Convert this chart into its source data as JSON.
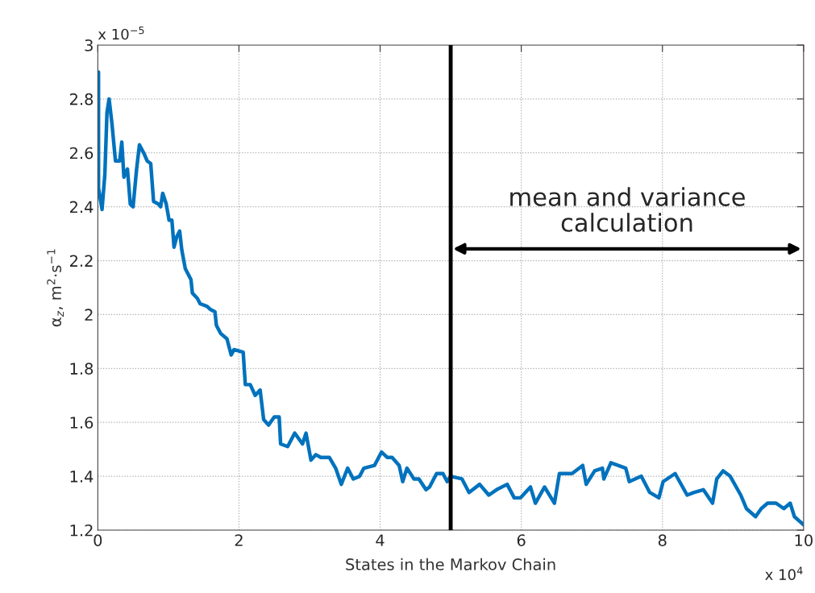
{
  "chart_data": {
    "type": "line",
    "xlabel": "States in the Markov Chain",
    "ylabel": "α$_{z}$, m$^{2}$·s$^{−1}$",
    "xlim": [
      0,
      10
    ],
    "xticks": [
      0,
      2,
      4,
      6,
      8,
      10
    ],
    "ylim": [
      1.2,
      3
    ],
    "yticks": [
      1.2,
      1.4,
      1.6,
      1.8,
      2,
      2.2,
      2.4,
      2.6,
      2.8,
      3
    ],
    "grid": true,
    "series": [
      {
        "color": "#0072bd",
        "x": [
          0.01,
          0.01,
          0.06,
          0.1,
          0.13,
          0.16,
          0.2,
          0.25,
          0.31,
          0.34,
          0.37,
          0.42,
          0.46,
          0.5,
          0.55,
          0.59,
          0.65,
          0.7,
          0.75,
          0.79,
          0.86,
          0.89,
          0.92,
          0.97,
          1.01,
          1.05,
          1.08,
          1.12,
          1.16,
          1.19,
          1.24,
          1.32,
          1.34,
          1.41,
          1.45,
          1.55,
          1.59,
          1.66,
          1.68,
          1.74,
          1.83,
          1.89,
          1.93,
          2.06,
          2.09,
          2.16,
          2.23,
          2.3,
          2.35,
          2.42,
          2.5,
          2.57,
          2.59,
          2.69,
          2.79,
          2.9,
          2.95,
          3.02,
          3.09,
          3.16,
          3.28,
          3.37,
          3.45,
          3.54,
          3.62,
          3.71,
          3.77,
          3.92,
          4.02,
          4.1,
          4.17,
          4.27,
          4.32,
          4.38,
          4.48,
          4.55,
          4.65,
          4.7,
          4.8,
          4.89,
          4.95,
          5.0,
          5.16,
          5.26,
          5.41,
          5.54,
          5.65,
          5.8,
          5.9,
          5.99,
          6.13,
          6.2,
          6.33,
          6.47,
          6.54,
          6.72,
          6.87,
          6.92,
          7.04,
          7.15,
          7.17,
          7.27,
          7.48,
          7.53,
          7.7,
          7.82,
          7.95,
          8.01,
          8.18,
          8.35,
          8.45,
          8.58,
          8.71,
          8.77,
          8.86,
          8.96,
          9.11,
          9.19,
          9.32,
          9.4,
          9.49,
          9.61,
          9.72,
          9.81,
          9.87,
          10.0
        ],
        "values": [
          2.9,
          2.47,
          2.39,
          2.52,
          2.75,
          2.8,
          2.71,
          2.57,
          2.57,
          2.64,
          2.51,
          2.54,
          2.41,
          2.4,
          2.54,
          2.63,
          2.6,
          2.57,
          2.56,
          2.42,
          2.41,
          2.4,
          2.45,
          2.41,
          2.35,
          2.35,
          2.25,
          2.29,
          2.31,
          2.24,
          2.17,
          2.13,
          2.08,
          2.06,
          2.04,
          2.03,
          2.02,
          2.01,
          1.96,
          1.93,
          1.91,
          1.85,
          1.87,
          1.86,
          1.74,
          1.74,
          1.7,
          1.72,
          1.61,
          1.59,
          1.62,
          1.62,
          1.52,
          1.51,
          1.56,
          1.52,
          1.56,
          1.46,
          1.48,
          1.47,
          1.47,
          1.43,
          1.37,
          1.43,
          1.39,
          1.4,
          1.43,
          1.44,
          1.49,
          1.47,
          1.47,
          1.44,
          1.38,
          1.43,
          1.39,
          1.39,
          1.35,
          1.36,
          1.41,
          1.41,
          1.38,
          1.4,
          1.39,
          1.34,
          1.37,
          1.33,
          1.35,
          1.37,
          1.32,
          1.32,
          1.36,
          1.3,
          1.36,
          1.3,
          1.41,
          1.41,
          1.44,
          1.37,
          1.42,
          1.43,
          1.39,
          1.45,
          1.43,
          1.38,
          1.4,
          1.34,
          1.32,
          1.38,
          1.41,
          1.33,
          1.34,
          1.35,
          1.3,
          1.39,
          1.42,
          1.4,
          1.33,
          1.28,
          1.25,
          1.28,
          1.3,
          1.3,
          1.28,
          1.3,
          1.25,
          1.22
        ]
      }
    ],
    "ref_lines": [
      {
        "axis": "x",
        "value": 5,
        "color": "#000000"
      }
    ],
    "annotations": [
      "x 10$^{−5}$",
      "x 10$^{4}$",
      "mean and variance calculation"
    ]
  }
}
